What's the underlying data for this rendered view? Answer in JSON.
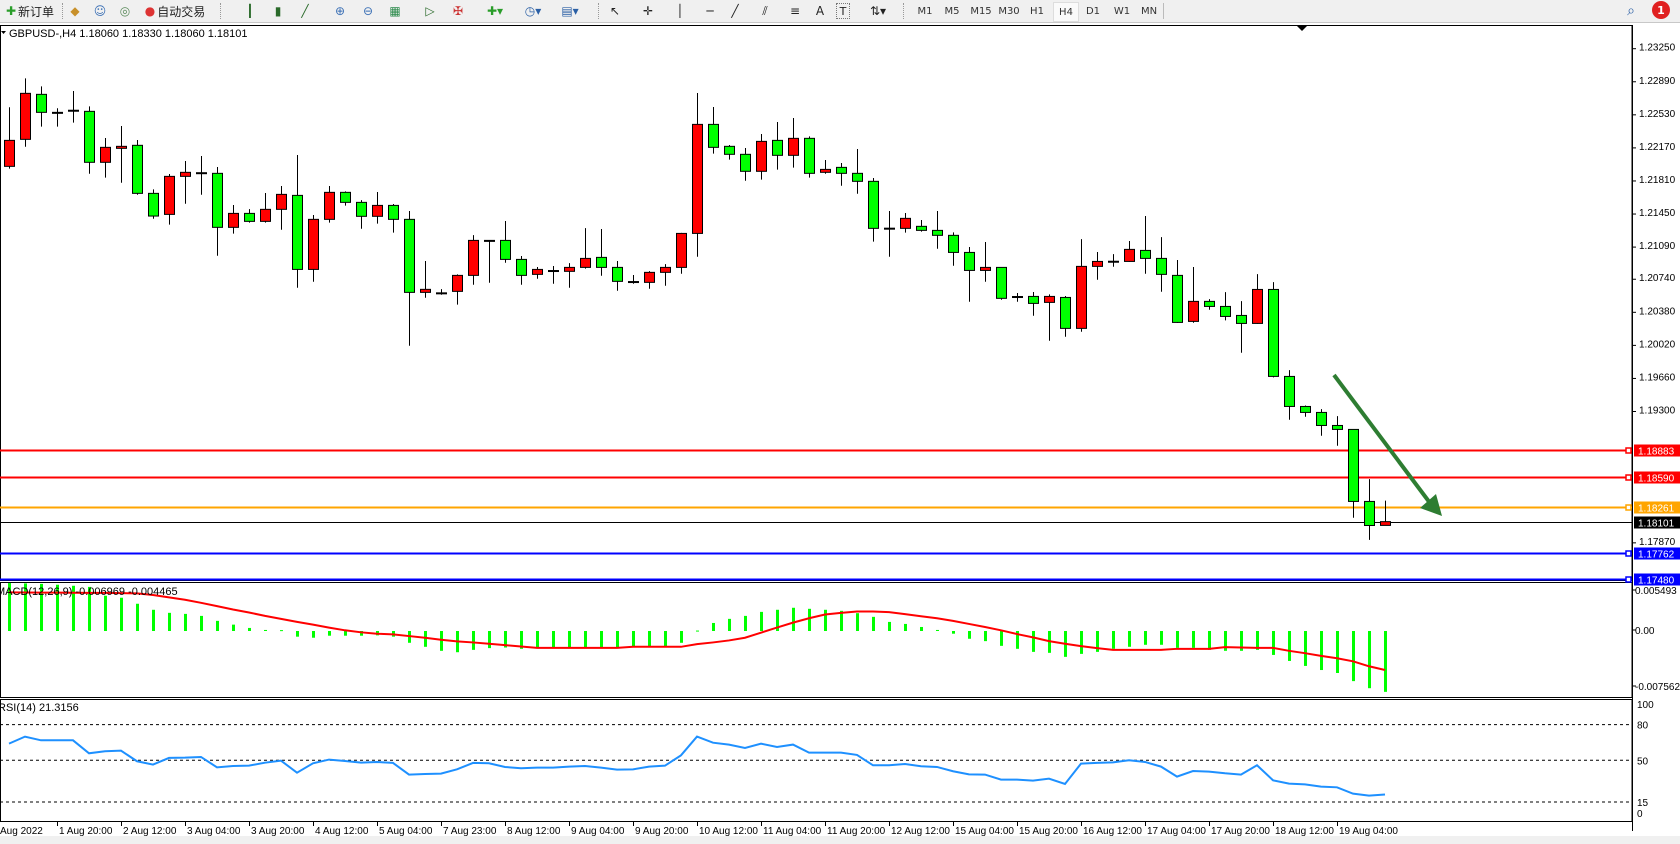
{
  "toolbar": {
    "new_order_label": "新订单",
    "auto_trading_label": "自动交易",
    "text_tool_label": "A",
    "label_tool_label": "T",
    "timeframes": [
      "M1",
      "M5",
      "M15",
      "M30",
      "H1",
      "H4",
      "D1",
      "W1",
      "MN"
    ],
    "active_timeframe": "H4",
    "notification_count": "1"
  },
  "chart": {
    "header": "GBPUSD-,H4  1.18060 1.18330 1.18060 1.18101",
    "arrow_color": "#2e7d32",
    "background": "#ffffff",
    "grid": false
  },
  "chart_data": {
    "type": "candlestick",
    "symbol": "GBPUSD-",
    "timeframe": "H4",
    "bull_color": "#ff0000",
    "bear_color": "#00ff00",
    "ylim": [
      1.1748,
      1.2362
    ],
    "price_ticks": [
      "1.23250",
      "1.22890",
      "1.22530",
      "1.22170",
      "1.21810",
      "1.21450",
      "1.21090",
      "1.20740",
      "1.20380",
      "1.20020",
      "1.19660",
      "1.19300",
      "1.17870"
    ],
    "time_labels": [
      "Aug 2022",
      "1 Aug 20:00",
      "2 Aug 12:00",
      "3 Aug 04:00",
      "3 Aug 20:00",
      "4 Aug 12:00",
      "5 Aug 04:00",
      "7 Aug 23:00",
      "8 Aug 12:00",
      "9 Aug 04:00",
      "9 Aug 20:00",
      "10 Aug 12:00",
      "11 Aug 04:00",
      "11 Aug 20:00",
      "12 Aug 12:00",
      "15 Aug 04:00",
      "15 Aug 20:00",
      "16 Aug 12:00",
      "17 Aug 04:00",
      "17 Aug 20:00",
      "18 Aug 12:00",
      "19 Aug 04:00"
    ],
    "hlines": [
      {
        "price": "1.18883",
        "color": "#ff0000"
      },
      {
        "price": "1.18590",
        "color": "#ff0000"
      },
      {
        "price": "1.18261",
        "color": "#ffa500"
      },
      {
        "price": "1.18101",
        "color": "#000000"
      },
      {
        "price": "1.17762",
        "color": "#0000ff"
      },
      {
        "price": "1.17480",
        "color": "#0000ff"
      }
    ],
    "ohlc": [
      [
        1.21969,
        1.22612,
        1.21944,
        1.22252
      ],
      [
        1.22263,
        1.22927,
        1.22183,
        1.22764
      ],
      [
        1.22753,
        1.2284,
        1.22401,
        1.22557
      ],
      [
        1.22557,
        1.22601,
        1.22401,
        1.22553
      ],
      [
        1.22575,
        1.22789,
        1.22445,
        1.2258
      ],
      [
        1.22568,
        1.22622,
        1.21889,
        1.22013
      ],
      [
        1.22013,
        1.22278,
        1.21846,
        1.22176
      ],
      [
        1.22165,
        1.22408,
        1.21791,
        1.22187
      ],
      [
        1.22198,
        1.22256,
        1.2166,
        1.21675
      ],
      [
        1.21675,
        1.21719,
        1.21399,
        1.21428
      ],
      [
        1.21446,
        1.21886,
        1.21334,
        1.2186
      ],
      [
        1.2186,
        1.22027,
        1.21562,
        1.21904
      ],
      [
        1.219,
        1.22082,
        1.2166,
        1.21896
      ],
      [
        1.21893,
        1.21962,
        1.20996,
        1.21305
      ],
      [
        1.21305,
        1.21548,
        1.21236,
        1.21457
      ],
      [
        1.21457,
        1.21504,
        1.21356,
        1.2137
      ],
      [
        1.2137,
        1.21679,
        1.21356,
        1.21501
      ],
      [
        1.21501,
        1.21755,
        1.21279,
        1.21664
      ],
      [
        1.21653,
        1.22092,
        1.20648,
        1.20847
      ],
      [
        1.20847,
        1.21439,
        1.20713,
        1.21392
      ],
      [
        1.21392,
        1.21755,
        1.21356,
        1.21686
      ],
      [
        1.21686,
        1.21697,
        1.21541,
        1.21577
      ],
      [
        1.21577,
        1.21602,
        1.2129,
        1.21425
      ],
      [
        1.21425,
        1.2169,
        1.21345,
        1.21544
      ],
      [
        1.21544,
        1.21559,
        1.21247,
        1.21392
      ],
      [
        1.21392,
        1.21483,
        1.20016,
        1.20597
      ],
      [
        1.20597,
        1.20938,
        1.20539,
        1.2063
      ],
      [
        1.20592,
        1.20633,
        1.20571,
        1.20588
      ],
      [
        1.20608,
        1.20793,
        1.20463,
        1.20782
      ],
      [
        1.20782,
        1.21221,
        1.2068,
        1.21163
      ],
      [
        1.21163,
        1.21165,
        1.20702,
        1.2116
      ],
      [
        1.21163,
        1.21374,
        1.2092,
        1.20956
      ],
      [
        1.20956,
        1.20993,
        1.2068,
        1.20782
      ],
      [
        1.20793,
        1.20873,
        1.20746,
        1.20847
      ],
      [
        1.20835,
        1.20884,
        1.20691,
        1.20831
      ],
      [
        1.20826,
        1.20916,
        1.20648,
        1.20869
      ],
      [
        1.20869,
        1.21297,
        1.20855,
        1.20967
      ],
      [
        1.20978,
        1.21287,
        1.20778,
        1.20869
      ],
      [
        1.20869,
        1.20938,
        1.20615,
        1.20717
      ],
      [
        1.20715,
        1.20786,
        1.20691,
        1.20711
      ],
      [
        1.20706,
        1.20829,
        1.20637,
        1.20815
      ],
      [
        1.20815,
        1.20905,
        1.20669,
        1.20869
      ],
      [
        1.20869,
        1.21245,
        1.208,
        1.21239
      ],
      [
        1.21239,
        1.22768,
        1.20985,
        1.22426
      ],
      [
        1.22426,
        1.22615,
        1.22107,
        1.22176
      ],
      [
        1.22187,
        1.22201,
        1.22042,
        1.221
      ],
      [
        1.221,
        1.22169,
        1.21813,
        1.21915
      ],
      [
        1.21915,
        1.22321,
        1.21824,
        1.22241
      ],
      [
        1.22252,
        1.22452,
        1.21933,
        1.22089
      ],
      [
        1.22089,
        1.22495,
        1.21955,
        1.22274
      ],
      [
        1.22274,
        1.22296,
        1.21846,
        1.21893
      ],
      [
        1.21904,
        1.22038,
        1.21889,
        1.21936
      ],
      [
        1.21958,
        1.22005,
        1.21758,
        1.21893
      ],
      [
        1.21893,
        1.22158,
        1.21671,
        1.21806
      ],
      [
        1.21806,
        1.21842,
        1.21149,
        1.21294
      ],
      [
        1.21296,
        1.21483,
        1.20985,
        1.21292
      ],
      [
        1.21294,
        1.21461,
        1.21247,
        1.21403
      ],
      [
        1.21316,
        1.21385,
        1.21258,
        1.21272
      ],
      [
        1.21272,
        1.21483,
        1.21072,
        1.21218
      ],
      [
        1.21218,
        1.2125,
        1.20887,
        1.21032
      ],
      [
        1.21032,
        1.21091,
        1.20495,
        1.20836
      ],
      [
        1.20836,
        1.21145,
        1.20713,
        1.20869
      ],
      [
        1.20869,
        1.20872,
        1.20517,
        1.20532
      ],
      [
        1.20552,
        1.2059,
        1.20495,
        1.20548
      ],
      [
        1.20553,
        1.20601,
        1.20343,
        1.20477
      ],
      [
        1.20488,
        1.20575,
        1.20071,
        1.20553
      ],
      [
        1.20542,
        1.20557,
        1.20114,
        1.20205
      ],
      [
        1.20205,
        1.21177,
        1.20168,
        1.2088
      ],
      [
        1.2088,
        1.21036,
        1.20735,
        1.20934
      ],
      [
        1.20936,
        1.21014,
        1.20876,
        1.20932
      ],
      [
        1.20934,
        1.21156,
        1.2093,
        1.21065
      ],
      [
        1.21054,
        1.21428,
        1.208,
        1.20967
      ],
      [
        1.20967,
        1.21199,
        1.20604,
        1.20793
      ],
      [
        1.20782,
        1.20949,
        1.20265,
        1.2027
      ],
      [
        1.20281,
        1.20873,
        1.20266,
        1.20499
      ],
      [
        1.20499,
        1.20524,
        1.20408,
        1.20444
      ],
      [
        1.20444,
        1.206,
        1.20292,
        1.20335
      ],
      [
        1.20346,
        1.20502,
        1.1994,
        1.20259
      ],
      [
        1.20259,
        1.20796,
        1.20255,
        1.20629
      ],
      [
        1.20629,
        1.20709,
        1.19671,
        1.19682
      ],
      [
        1.19682,
        1.19751,
        1.1921,
        1.19355
      ],
      [
        1.19355,
        1.19366,
        1.19243,
        1.1929
      ],
      [
        1.1929,
        1.19326,
        1.19036,
        1.19148
      ],
      [
        1.19148,
        1.1925,
        1.18927,
        1.19105
      ],
      [
        1.19105,
        1.19108,
        1.18143,
        1.18321
      ],
      [
        1.18321,
        1.18564,
        1.17903,
        1.18059
      ],
      [
        1.1806,
        1.1833,
        1.1806,
        1.18101
      ]
    ],
    "macd": {
      "label": "MACD(12,26,9) -0.006969 -0.004465",
      "axis_labels": [
        "0.005493",
        "0.00",
        "-0.007562"
      ],
      "ylim": [
        -0.007562,
        0.005493
      ],
      "histogram_color": "#00ff00",
      "signal_color": "#ff0000",
      "histogram": [
        0.00549,
        0.00545,
        0.0054,
        0.0053,
        0.00518,
        0.00505,
        0.00404,
        0.00381,
        0.00312,
        0.00243,
        0.00208,
        0.00196,
        0.00173,
        0.00116,
        0.00073,
        0.00035,
        0.00012,
        0.0001,
        -0.00065,
        -0.00077,
        -0.00054,
        -0.00054,
        -0.00054,
        -0.0005,
        -0.00065,
        -0.00135,
        -0.00181,
        -0.00227,
        -0.00243,
        -0.00216,
        -0.00196,
        -0.00189,
        -0.00204,
        -0.00189,
        -0.00187,
        -0.00187,
        -0.00187,
        -0.00187,
        -0.00187,
        -0.00187,
        -0.00187,
        -0.00187,
        -0.00135,
        5e-05,
        0.00092,
        0.00139,
        0.00173,
        0.00219,
        0.00243,
        0.00266,
        0.00254,
        0.00243,
        0.00231,
        0.00204,
        0.00162,
        0.00104,
        0.00081,
        0.00046,
        0.00012,
        -0.00031,
        -0.00089,
        -0.00116,
        -0.0017,
        -0.00204,
        -0.00239,
        -0.0025,
        -0.00296,
        -0.00262,
        -0.00239,
        -0.00204,
        -0.00181,
        -0.00158,
        -0.00158,
        -0.00193,
        -0.00193,
        -0.00216,
        -0.00227,
        -0.00227,
        -0.00216,
        -0.00274,
        -0.00343,
        -0.004,
        -0.00447,
        -0.00481,
        -0.00574,
        -0.00655,
        -0.00697
      ],
      "signal": [
        0.00443,
        0.00441,
        0.0044,
        0.00439,
        0.00438,
        0.00437,
        0.00436,
        0.00434,
        0.00431,
        0.00412,
        0.00385,
        0.00358,
        0.00323,
        0.00285,
        0.00246,
        0.00212,
        0.00173,
        0.00139,
        0.00104,
        0.00073,
        0.00039,
        8e-05,
        -0.00015,
        -0.00031,
        -0.00039,
        -0.00058,
        -0.00077,
        -0.001,
        -0.00119,
        -0.00131,
        -0.00146,
        -0.00162,
        -0.00177,
        -0.00193,
        -0.00193,
        -0.00193,
        -0.00193,
        -0.00193,
        -0.00193,
        -0.00181,
        -0.00181,
        -0.00181,
        -0.00181,
        -0.0015,
        -0.00131,
        -0.00108,
        -0.00077,
        -0.00019,
        0.00039,
        0.00096,
        0.00146,
        0.00189,
        0.00208,
        0.00223,
        0.00223,
        0.00216,
        0.00193,
        0.00169,
        0.00146,
        0.00116,
        0.00081,
        0.00046,
        8e-05,
        -0.00035,
        -0.00073,
        -0.00116,
        -0.00146,
        -0.00173,
        -0.00196,
        -0.00216,
        -0.00216,
        -0.00216,
        -0.00216,
        -0.00204,
        -0.00204,
        -0.00204,
        -0.00185,
        -0.00189,
        -0.00193,
        -0.00193,
        -0.00227,
        -0.00254,
        -0.00285,
        -0.00312,
        -0.00347,
        -0.00404,
        -0.00447
      ]
    },
    "rsi": {
      "label": "RSI(14) 21.3156",
      "axis_labels": [
        "100",
        "80",
        "50",
        "15",
        "0"
      ],
      "levels": [
        80,
        50,
        15
      ],
      "ylim": [
        0,
        100
      ],
      "color": "#1e90ff",
      "values": [
        64.0,
        69.9,
        66.8,
        66.8,
        66.8,
        55.9,
        57.6,
        58.1,
        49.2,
        46.4,
        52.0,
        52.2,
        52.8,
        44.1,
        45.2,
        45.5,
        48.0,
        49.7,
        39.6,
        47.5,
        50.6,
        49.4,
        48.0,
        48.6,
        47.8,
        38.0,
        38.5,
        38.8,
        42.4,
        47.8,
        47.5,
        44.4,
        43.3,
        43.8,
        43.8,
        44.7,
        45.2,
        43.8,
        42.2,
        42.4,
        44.7,
        45.5,
        54.2,
        69.9,
        64.8,
        63.2,
        60.4,
        64.0,
        61.2,
        63.2,
        56.4,
        56.4,
        56.4,
        54.5,
        45.8,
        45.8,
        46.9,
        45.0,
        44.4,
        40.8,
        38.2,
        38.0,
        33.8,
        33.8,
        32.9,
        34.6,
        30.1,
        47.2,
        47.8,
        48.3,
        50.0,
        48.6,
        44.7,
        36.3,
        41.0,
        40.5,
        39.1,
        38.0,
        45.8,
        33.2,
        30.4,
        29.8,
        27.9,
        27.3,
        22.0,
        20.3,
        21.3
      ]
    }
  }
}
